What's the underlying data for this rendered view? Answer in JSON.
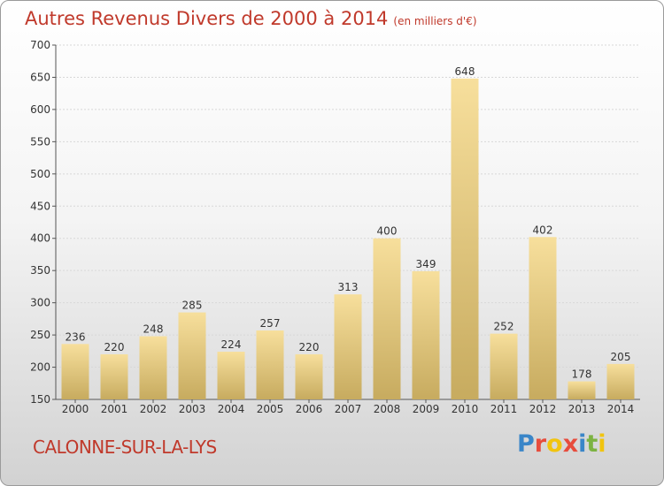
{
  "header": {
    "title": "Autres Revenus Divers de 2000 à 2014",
    "subtitle": "(en milliers d'€)"
  },
  "footer": {
    "city": "CALONNE-SUR-LA-LYS",
    "brand": "Proxiti"
  },
  "colors": {
    "title": "#c0392b",
    "bar_light": "#f7df9c",
    "bar_dark": "#c7ab5f",
    "brand_letters": [
      "#3a86c8",
      "#e74c3c",
      "#f1c40f",
      "#e74c3c",
      "#3a86c8",
      "#7cb342",
      "#f1c40f"
    ]
  },
  "chart_data": {
    "type": "bar",
    "title": "Autres Revenus Divers de 2000 à 2014",
    "subtitle": "(en milliers d'€)",
    "categories": [
      "2000",
      "2001",
      "2002",
      "2003",
      "2004",
      "2005",
      "2006",
      "2007",
      "2008",
      "2009",
      "2010",
      "2011",
      "2012",
      "2013",
      "2014"
    ],
    "values": [
      236,
      220,
      248,
      285,
      224,
      257,
      220,
      313,
      400,
      349,
      648,
      252,
      402,
      178,
      205
    ],
    "ylim": [
      150,
      700
    ],
    "yticks": [
      150,
      200,
      250,
      300,
      350,
      400,
      450,
      500,
      550,
      600,
      650,
      700
    ],
    "grid": true,
    "legend": "none"
  }
}
